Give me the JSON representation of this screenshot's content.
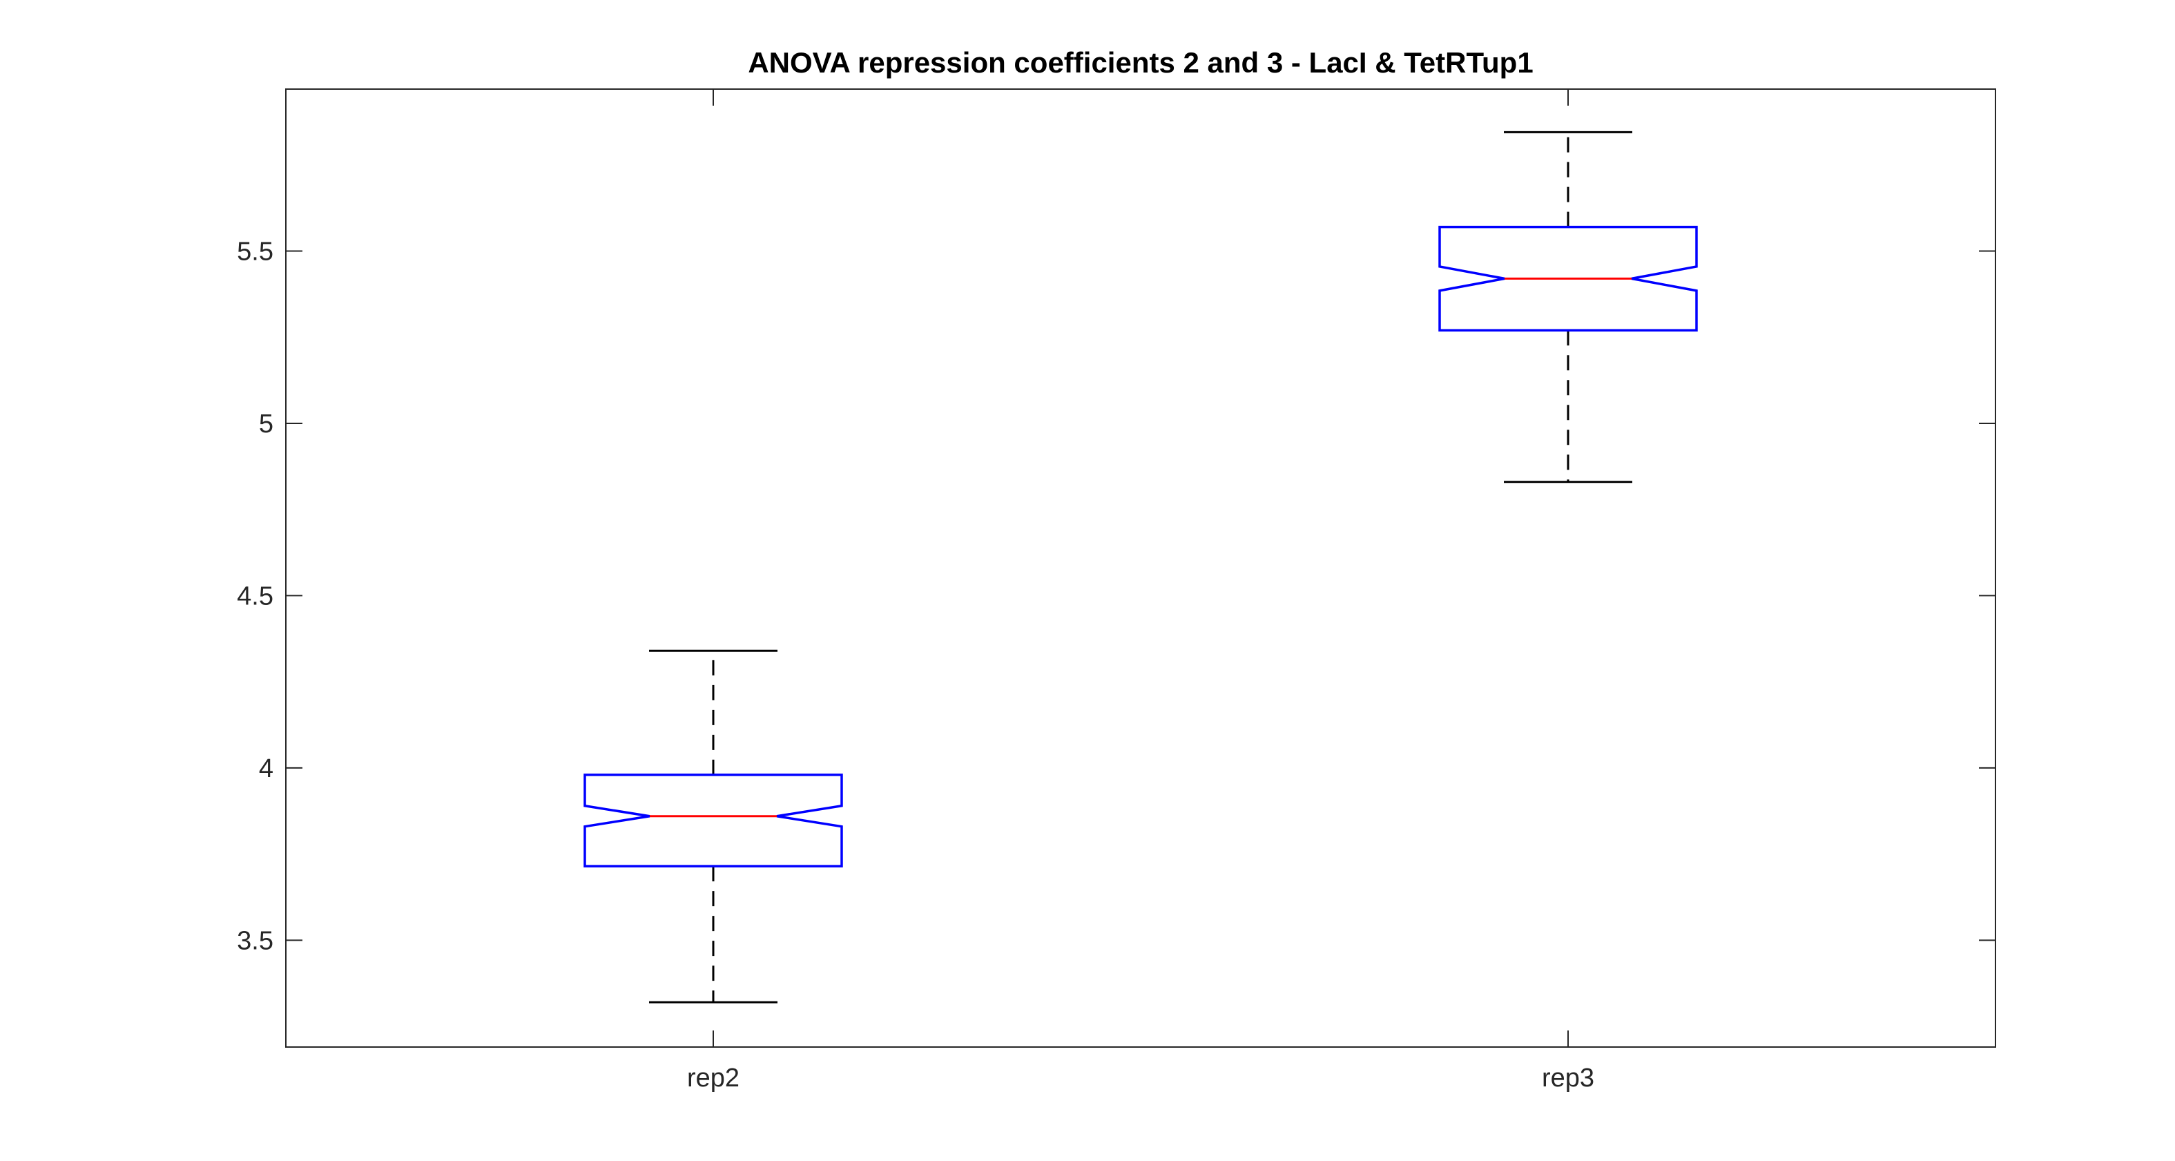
{
  "chart_data": {
    "type": "boxplot",
    "title": "ANOVA repression coefficients 2 and 3 - LacI & TetRTup1",
    "xlabel": "",
    "ylabel": "",
    "categories": [
      "rep2",
      "rep3"
    ],
    "ylim": [
      3.19,
      5.97
    ],
    "yticks": [
      3.5,
      4,
      4.5,
      5,
      5.5
    ],
    "ytick_labels": [
      "3.5",
      "4",
      "4.5",
      "5",
      "5.5"
    ],
    "notched": true,
    "grid": false,
    "boxes": [
      {
        "label": "rep2",
        "whisker_low": 3.32,
        "q1": 3.715,
        "median": 3.86,
        "q3": 3.98,
        "whisker_high": 4.34,
        "notch_low": 3.83,
        "notch_high": 3.89
      },
      {
        "label": "rep3",
        "whisker_low": 4.83,
        "q1": 5.27,
        "median": 5.42,
        "q3": 5.57,
        "whisker_high": 5.845,
        "notch_low": 5.385,
        "notch_high": 5.455
      }
    ],
    "colors": {
      "box": "#0000ff",
      "median": "#ff0000",
      "whisker": "#000000",
      "axes": "#262626"
    }
  }
}
